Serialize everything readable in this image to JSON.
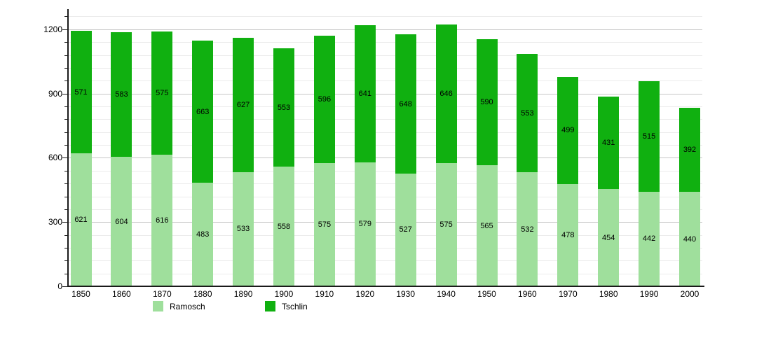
{
  "chart_data": {
    "type": "bar",
    "stacked": true,
    "title": "",
    "xlabel": "",
    "ylabel": "",
    "categories": [
      "1850",
      "1860",
      "1870",
      "1880",
      "1890",
      "1900",
      "1910",
      "1920",
      "1930",
      "1940",
      "1950",
      "1960",
      "1970",
      "1980",
      "1990",
      "2000"
    ],
    "series": [
      {
        "name": "Ramosch",
        "color": "#9fdf9c",
        "values": [
          621,
          604,
          616,
          483,
          533,
          558,
          575,
          579,
          527,
          575,
          565,
          532,
          478,
          454,
          442,
          440
        ]
      },
      {
        "name": "Tschlin",
        "color": "#10b010",
        "values": [
          571,
          583,
          575,
          663,
          627,
          553,
          596,
          641,
          648,
          646,
          590,
          553,
          499,
          431,
          515,
          392
        ]
      }
    ],
    "ylim": [
      0,
      1294
    ],
    "yticks": [
      0,
      300,
      600,
      900,
      1200
    ],
    "minor_tick_step": 60,
    "grid": true,
    "legend_position": "bottom"
  },
  "axis": {
    "color": "#1a1a1a",
    "minor_grid_color": "#ebebeb",
    "major_grid_color": "#c6c6c6"
  }
}
